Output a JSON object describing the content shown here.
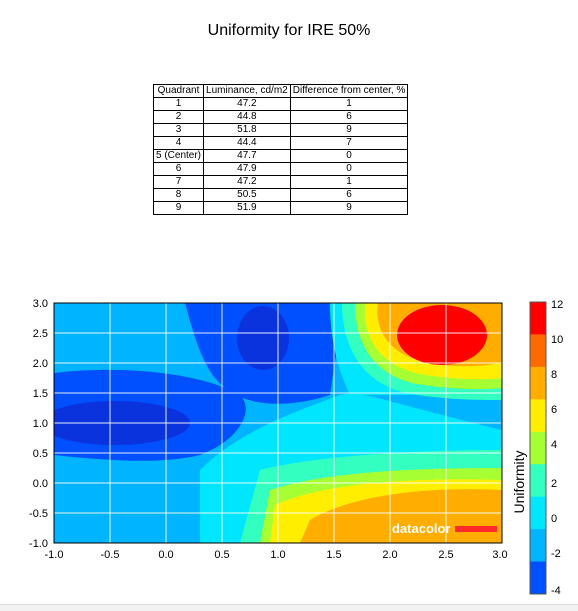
{
  "title": "Uniformity for IRE 50%",
  "table": {
    "headers": [
      "Quadrant",
      "Luminance, cd/m2",
      "Difference from center, %"
    ],
    "rows": [
      [
        "1",
        "47.2",
        "1"
      ],
      [
        "2",
        "44.8",
        "6"
      ],
      [
        "3",
        "51.8",
        "9"
      ],
      [
        "4",
        "44.4",
        "7"
      ],
      [
        "5 (Center)",
        "47.7",
        "0"
      ],
      [
        "6",
        "47.9",
        "0"
      ],
      [
        "7",
        "47.2",
        "1"
      ],
      [
        "8",
        "50.5",
        "6"
      ],
      [
        "9",
        "51.9",
        "9"
      ]
    ]
  },
  "chart_data": {
    "type": "heatmap",
    "title": "",
    "xlabel": "",
    "ylabel": "",
    "xlim": [
      -1.0,
      3.0
    ],
    "ylim": [
      -1.0,
      3.0
    ],
    "x_ticks": [
      "-1.0",
      "-0.5",
      "0.0",
      "0.5",
      "1.0",
      "1.5",
      "2.0",
      "2.5",
      "3.0"
    ],
    "y_ticks": [
      "3.0",
      "2.5",
      "2.0",
      "1.5",
      "1.0",
      "0.5",
      "0.0",
      "-0.5",
      "-1.0"
    ],
    "grid": true,
    "colorbar": {
      "label": "Uniformity",
      "ticks": [
        "12",
        "10",
        "8",
        "6",
        "4",
        "2",
        "0",
        "-2",
        "-4"
      ],
      "range": [
        -4,
        12
      ],
      "colors": [
        "#0050ff",
        "#00b4ff",
        "#00e6ff",
        "#33ffc0",
        "#a6ff33",
        "#ffee00",
        "#ffae00",
        "#ff6a00",
        "#ff0000"
      ]
    },
    "watermark": "datacolor"
  }
}
